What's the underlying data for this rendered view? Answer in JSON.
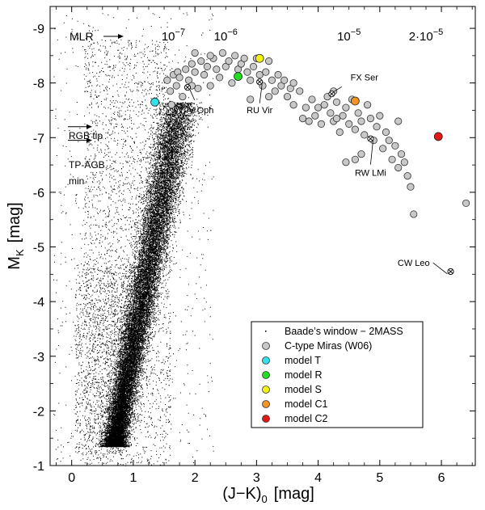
{
  "chart_data": {
    "type": "scatter",
    "xlabel": "(J−K)",
    "xlabel_sub": "0",
    "xlabel_unit": "[mag]",
    "ylabel": "M",
    "ylabel_sub": "K",
    "ylabel_unit": "[mag]",
    "xlim": [
      -0.35,
      6.55
    ],
    "ylim": [
      -1,
      -9.4
    ],
    "x_ticks": [
      0,
      1,
      2,
      3,
      4,
      5,
      6
    ],
    "x_tick_labels": [
      "0",
      "1",
      "2",
      "3",
      "4",
      "5",
      "6"
    ],
    "y_ticks": [
      -1,
      -2,
      -3,
      -4,
      -5,
      -6,
      -7,
      -8,
      -9
    ],
    "y_tick_labels": [
      "-1",
      "-2",
      "-3",
      "-4",
      "-5",
      "-6",
      "-7",
      "-8",
      "-9"
    ],
    "top_annotations": {
      "mlr_label": "MLR",
      "mlr_values": [
        {
          "x": 1.65,
          "text": "10",
          "exp": "−7"
        },
        {
          "x": 2.5,
          "text": "10",
          "exp": "−6"
        },
        {
          "x": 4.5,
          "text": "10",
          "exp": "−5"
        },
        {
          "x": 5.75,
          "text": "2·10",
          "exp": "−5"
        }
      ]
    },
    "side_annotations": {
      "rgb_tip": "RGB tip",
      "tp_agb": "TP-AGB",
      "tp_agb_sub": "min",
      "rgb_tip_mk": -7.2,
      "tp_agb_mk": -6.95
    },
    "series": [
      {
        "name": "Baade’s window − 2MASS",
        "kind": "dots",
        "color": "#000000",
        "description_count_approx": 30000
      },
      {
        "name": "C-type Miras (W06)",
        "kind": "circles",
        "color": "#c8c8c8",
        "points": [
          [
            1.55,
            -8.05
          ],
          [
            1.6,
            -7.85
          ],
          [
            1.62,
            -7.6
          ],
          [
            1.65,
            -8.15
          ],
          [
            1.7,
            -7.95
          ],
          [
            1.72,
            -8.2
          ],
          [
            1.75,
            -8.1
          ],
          [
            1.8,
            -7.75
          ],
          [
            1.85,
            -8.25
          ],
          [
            1.9,
            -8.05
          ],
          [
            1.95,
            -8.35
          ],
          [
            2.0,
            -8.2
          ],
          [
            2.05,
            -7.9
          ],
          [
            2.1,
            -8.4
          ],
          [
            2.15,
            -8.15
          ],
          [
            2.2,
            -8.3
          ],
          [
            2.25,
            -7.95
          ],
          [
            2.3,
            -8.45
          ],
          [
            2.35,
            -8.25
          ],
          [
            2.4,
            -8.1
          ],
          [
            2.45,
            -8.55
          ],
          [
            2.5,
            -8.3
          ],
          [
            2.55,
            -8.4
          ],
          [
            2.6,
            -8.0
          ],
          [
            2.65,
            -8.5
          ],
          [
            2.7,
            -8.25
          ],
          [
            2.75,
            -8.35
          ],
          [
            2.8,
            -8.45
          ],
          [
            2.85,
            -8.2
          ],
          [
            2.9,
            -8.05
          ],
          [
            2.95,
            -8.3
          ],
          [
            3.0,
            -8.45
          ],
          [
            3.05,
            -8.15
          ],
          [
            3.1,
            -7.95
          ],
          [
            3.15,
            -8.2
          ],
          [
            3.2,
            -8.4
          ],
          [
            3.25,
            -8.05
          ],
          [
            3.3,
            -7.85
          ],
          [
            3.35,
            -8.15
          ],
          [
            3.4,
            -7.95
          ],
          [
            3.45,
            -8.05
          ],
          [
            3.5,
            -7.75
          ],
          [
            3.55,
            -7.9
          ],
          [
            3.6,
            -7.6
          ],
          [
            3.7,
            -7.85
          ],
          [
            3.75,
            -7.35
          ],
          [
            3.8,
            -7.55
          ],
          [
            3.85,
            -7.3
          ],
          [
            3.9,
            -7.7
          ],
          [
            3.95,
            -7.4
          ],
          [
            4.0,
            -7.55
          ],
          [
            4.05,
            -7.25
          ],
          [
            4.1,
            -7.6
          ],
          [
            4.15,
            -7.75
          ],
          [
            4.2,
            -7.45
          ],
          [
            4.25,
            -7.3
          ],
          [
            4.3,
            -7.65
          ],
          [
            4.35,
            -7.1
          ],
          [
            4.4,
            -7.4
          ],
          [
            4.45,
            -7.55
          ],
          [
            4.5,
            -7.25
          ],
          [
            4.55,
            -7.7
          ],
          [
            4.6,
            -7.15
          ],
          [
            4.65,
            -7.45
          ],
          [
            4.7,
            -7.3
          ],
          [
            4.75,
            -7.05
          ],
          [
            4.8,
            -7.6
          ],
          [
            4.85,
            -7.35
          ],
          [
            4.9,
            -6.95
          ],
          [
            4.95,
            -7.2
          ],
          [
            5.0,
            -7.4
          ],
          [
            5.05,
            -6.8
          ],
          [
            5.1,
            -7.1
          ],
          [
            5.15,
            -6.95
          ],
          [
            5.2,
            -6.6
          ],
          [
            5.25,
            -6.85
          ],
          [
            5.3,
            -6.45
          ],
          [
            5.35,
            -6.7
          ],
          [
            5.4,
            -6.55
          ],
          [
            5.45,
            -6.3
          ],
          [
            5.5,
            -6.1
          ],
          [
            5.55,
            -5.6
          ],
          [
            5.3,
            -7.3
          ],
          [
            4.6,
            -6.6
          ],
          [
            4.45,
            -6.55
          ],
          [
            4.7,
            -6.7
          ],
          [
            2.9,
            -7.7
          ],
          [
            3.2,
            -7.75
          ],
          [
            6.4,
            -5.8
          ],
          [
            4.25,
            -7.85
          ],
          [
            4.3,
            -7.35
          ],
          [
            3.6,
            -8.0
          ],
          [
            2.0,
            -8.55
          ],
          [
            2.25,
            -8.5
          ],
          [
            1.95,
            -7.95
          ]
        ]
      },
      {
        "name": "model T",
        "kind": "circles",
        "color": "#33e0e8",
        "points": [
          [
            1.35,
            -7.65
          ]
        ]
      },
      {
        "name": "model R",
        "kind": "circles",
        "color": "#22dd22",
        "points": [
          [
            2.7,
            -8.12
          ]
        ]
      },
      {
        "name": "model S",
        "kind": "circles",
        "color": "#f2f215",
        "points": [
          [
            3.05,
            -8.45
          ]
        ]
      },
      {
        "name": "model C1",
        "kind": "circles",
        "color": "#f5941e",
        "points": [
          [
            4.6,
            -7.67
          ]
        ]
      },
      {
        "name": "model C2",
        "kind": "circles",
        "color": "#e01818",
        "points": [
          [
            5.95,
            -7.02
          ]
        ]
      }
    ],
    "labeled_stars": [
      {
        "name": "V Oph",
        "x": 1.88,
        "y": -7.92,
        "label_x": 2.1,
        "label_y": -7.45
      },
      {
        "name": "RU Vir",
        "x": 3.05,
        "y": -8.02,
        "label_x": 3.05,
        "label_y": -7.45
      },
      {
        "name": "FX Ser",
        "x": 4.22,
        "y": -7.8,
        "label_x": 4.75,
        "label_y": -8.05
      },
      {
        "name": "RW LMi",
        "x": 4.85,
        "y": -6.98,
        "label_x": 4.85,
        "label_y": -6.3
      },
      {
        "name": "CW Leo",
        "x": 6.15,
        "y": -4.55,
        "label_x": 5.55,
        "label_y": -4.65
      }
    ]
  }
}
